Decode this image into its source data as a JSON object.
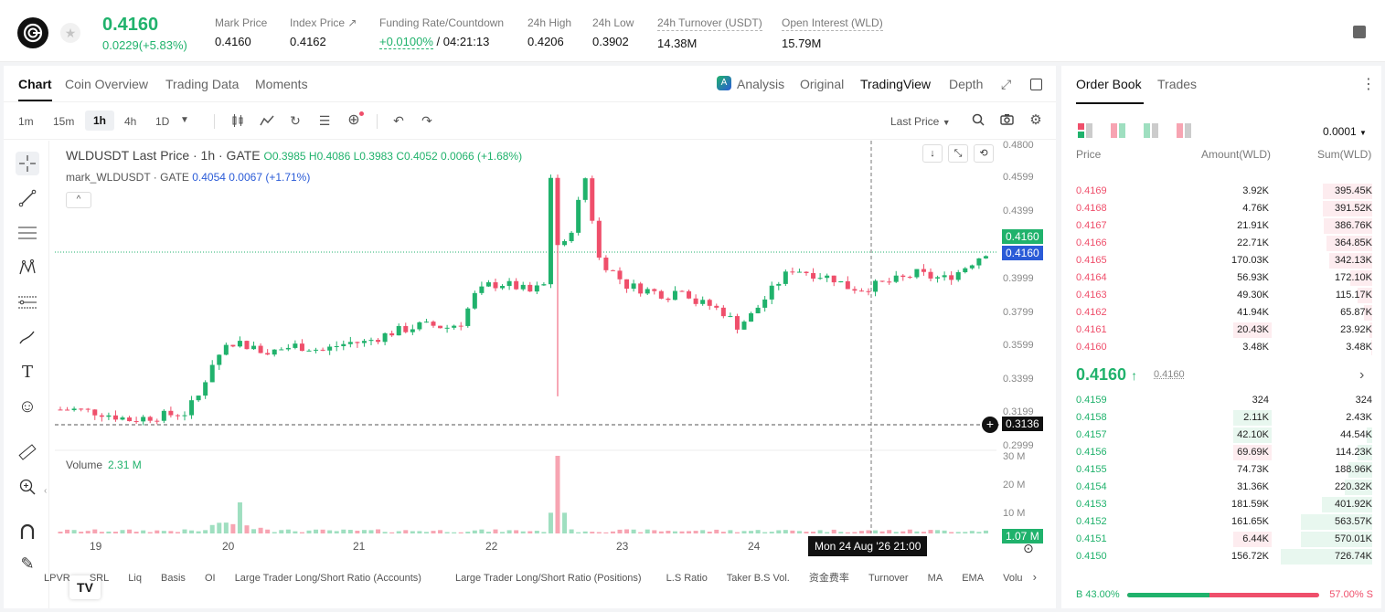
{
  "header": {
    "price": "0.4160",
    "change": "0.0229(+5.83%)",
    "stats": [
      {
        "label": "Mark Price",
        "value": "0.4160"
      },
      {
        "label": "Index Price ↗",
        "value": "0.4162"
      },
      {
        "label": "Funding Rate/Countdown",
        "value_green": "+0.0100%",
        "value": " / 04:21:13"
      },
      {
        "label": "24h High",
        "value": "0.4206"
      },
      {
        "label": "24h Low",
        "value": "0.3902"
      },
      {
        "label": "24h Turnover (USDT)",
        "value": "14.38M"
      },
      {
        "label": "Open Interest (WLD)",
        "value": "15.79M"
      }
    ]
  },
  "chart_tabs": [
    "Chart",
    "Coin Overview",
    "Trading Data",
    "Moments"
  ],
  "view_tabs": [
    "Analysis",
    "Original",
    "TradingView",
    "Depth"
  ],
  "intervals": [
    "1m",
    "15m",
    "1h",
    "4h",
    "1D"
  ],
  "last_price_label": "Last Price",
  "legend": {
    "symbol": "WLDUSDT Last Price · 1h · GATE",
    "ohlc": "O0.3985 H0.4086 L0.3983 C0.4052 0.0066 (+1.68%)",
    "mark_name": "mark_WLDUSDT · GATE",
    "mark_value": "0.4054 0.0067 (+1.71%)"
  },
  "volume_legend": {
    "label": "Volume",
    "value": "2.31 M"
  },
  "price_axis": [
    "0.4800",
    "0.4599",
    "0.4399",
    "0.4199",
    "0.3999",
    "0.3799",
    "0.3599",
    "0.3399",
    "0.3199",
    "0.2999"
  ],
  "price_tags": {
    "mark": "0.4160",
    "last": "0.4160",
    "cross": "0.3136"
  },
  "volume_axis": [
    "30 M",
    "20 M",
    "10 M"
  ],
  "volume_tag": "1.07 M",
  "date_axis": [
    "19",
    "20",
    "21",
    "22",
    "23",
    "24"
  ],
  "crosshair_label": "Mon 24 Aug '26   21:00",
  "indicators": [
    "LPVR",
    "SRL",
    "Liq",
    "Basis",
    "OI",
    "Large Trader Long/Short Ratio (Accounts)",
    "Large Trader Long/Short Ratio (Positions)",
    "L.S Ratio",
    "Taker B.S Vol.",
    "资金费率",
    "Turnover",
    "MA",
    "EMA",
    "Volu"
  ],
  "chart_data": {
    "type": "candlestick",
    "title": "WLDUSDT Last Price · 1h · GATE",
    "ylim": [
      0.2999,
      0.48
    ],
    "x_labels": [
      "19",
      "20",
      "21",
      "22",
      "23",
      "24"
    ],
    "close_path": [
      0.322,
      0.322,
      0.321,
      0.32,
      0.318,
      0.316,
      0.317,
      0.318,
      0.319,
      0.32,
      0.33,
      0.35,
      0.36,
      0.362,
      0.358,
      0.356,
      0.358,
      0.36,
      0.359,
      0.357,
      0.36,
      0.362,
      0.362,
      0.365,
      0.368,
      0.37,
      0.372,
      0.372,
      0.371,
      0.374,
      0.39,
      0.396,
      0.397,
      0.395,
      0.392,
      0.396,
      0.41,
      0.43,
      0.46,
      0.412,
      0.404,
      0.396,
      0.394,
      0.392,
      0.39,
      0.395,
      0.386,
      0.384,
      0.38,
      0.372,
      0.378,
      0.388,
      0.398,
      0.406,
      0.404,
      0.402,
      0.4,
      0.395,
      0.394,
      0.396,
      0.398,
      0.4,
      0.403,
      0.401,
      0.4,
      0.404,
      0.41,
      0.416
    ],
    "volume_max_M": 30,
    "volume_peaks": [
      {
        "x": "20",
        "M": 12
      },
      {
        "x": "22",
        "M": 30
      }
    ]
  },
  "orderbook": {
    "tabs": [
      "Order Book",
      "Trades"
    ],
    "precision": "0.0001",
    "columns": [
      "Price",
      "Amount(WLD)",
      "Sum(WLD)"
    ],
    "asks": [
      {
        "p": "0.4169",
        "a": "3.92K",
        "s": "395.45K",
        "d": 0.54,
        "ab": 0
      },
      {
        "p": "0.4168",
        "a": "4.76K",
        "s": "391.52K",
        "d": 0.54,
        "ab": 0
      },
      {
        "p": "0.4167",
        "a": "21.91K",
        "s": "386.76K",
        "d": 0.53,
        "ab": 0
      },
      {
        "p": "0.4166",
        "a": "22.71K",
        "s": "364.85K",
        "d": 0.5,
        "ab": 0
      },
      {
        "p": "0.4165",
        "a": "170.03K",
        "s": "342.13K",
        "d": 0.47,
        "ab": 0
      },
      {
        "p": "0.4164",
        "a": "56.93K",
        "s": "172.10K",
        "d": 0.24,
        "ab": 0
      },
      {
        "p": "0.4163",
        "a": "49.30K",
        "s": "115.17K",
        "d": 0.16,
        "ab": 0
      },
      {
        "p": "0.4162",
        "a": "41.94K",
        "s": "65.87K",
        "d": 0.09,
        "ab": 0
      },
      {
        "p": "0.4161",
        "a": "20.43K",
        "s": "23.92K",
        "d": 0.03,
        "ab": 0.35
      },
      {
        "p": "0.4160",
        "a": "3.48K",
        "s": "3.48K",
        "d": 0.01,
        "ab": 0
      }
    ],
    "mid_price": "0.4160",
    "mid_arrow": "↑",
    "mid_mark": "0.4160",
    "bids": [
      {
        "p": "0.4159",
        "a": "324",
        "s": "324",
        "d": 0,
        "ab": 0
      },
      {
        "p": "0.4158",
        "a": "2.11K",
        "s": "2.43K",
        "d": 0,
        "ab": 0.35
      },
      {
        "p": "0.4157",
        "a": "42.10K",
        "s": "44.54K",
        "d": 0.06,
        "ab": 0.35
      },
      {
        "p": "0.4156",
        "a": "69.69K",
        "s": "114.23K",
        "d": 0.16,
        "ab": 0.35
      },
      {
        "p": "0.4155",
        "a": "74.73K",
        "s": "188.96K",
        "d": 0.26,
        "ab": 0
      },
      {
        "p": "0.4154",
        "a": "31.36K",
        "s": "220.32K",
        "d": 0.3,
        "ab": 0
      },
      {
        "p": "0.4153",
        "a": "181.59K",
        "s": "401.92K",
        "d": 0.55,
        "ab": 0
      },
      {
        "p": "0.4152",
        "a": "161.65K",
        "s": "563.57K",
        "d": 0.78,
        "ab": 0
      },
      {
        "p": "0.4151",
        "a": "6.44K",
        "s": "570.01K",
        "d": 0.78,
        "ab": 0.35
      },
      {
        "p": "0.4150",
        "a": "156.72K",
        "s": "726.74K",
        "d": 1.0,
        "ab": 0
      }
    ],
    "buy_ratio": "B 43.00%",
    "sell_ratio": "57.00% S",
    "buy_fraction": 0.43
  },
  "colors": {
    "up": "#20b26c",
    "down": "#ef4f6b",
    "ask_bg": "#fdecef",
    "bid_bg": "#e8f7ef"
  }
}
